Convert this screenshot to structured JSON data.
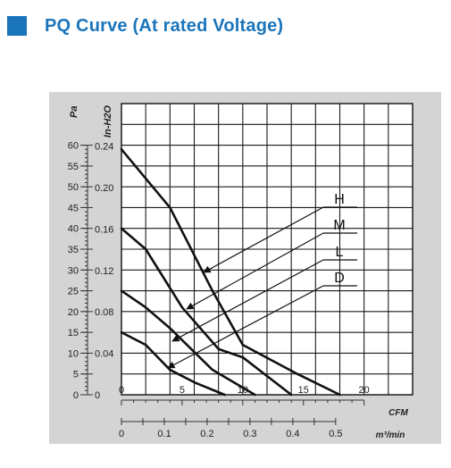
{
  "header": {
    "title": "PQ Curve (At rated Voltage)",
    "accent_color": "#1b75bb"
  },
  "chart_data": {
    "type": "line",
    "title": "PQ Curve (At rated Voltage)",
    "x_axis": {
      "label": "CFM",
      "range": [
        0,
        24
      ],
      "ticks": [
        0,
        5,
        10,
        15,
        20
      ],
      "tick_labels": [
        "0",
        "5",
        "10",
        "15",
        "20"
      ]
    },
    "x_axis_secondary": {
      "label": "m³/min",
      "ticks": [
        0,
        0.1,
        0.2,
        0.3,
        0.4,
        0.5
      ],
      "tick_labels": [
        "0",
        "0.1",
        "0.2",
        "0.3",
        "0.4",
        "0.5"
      ]
    },
    "y_axis": {
      "label": "Pa",
      "range": [
        0,
        70
      ],
      "ticks": [
        0,
        5,
        10,
        15,
        20,
        25,
        30,
        35,
        40,
        45,
        50,
        55,
        60
      ],
      "tick_labels": [
        "0",
        "5",
        "10",
        "15",
        "20",
        "25",
        "30",
        "35",
        "40",
        "45",
        "50",
        "55",
        "60"
      ]
    },
    "y_axis_secondary": {
      "label": "In-H2O",
      "ticks": [
        0,
        0.04,
        0.08,
        0.12,
        0.16,
        0.2,
        0.24
      ],
      "tick_labels": [
        "0",
        "0.04",
        "0.08",
        "0.12",
        "0.16",
        "0.20",
        "0.24"
      ]
    },
    "grid": true,
    "series": [
      {
        "name": "H",
        "x": [
          0,
          4,
          7.5,
          10,
          14.5,
          18
        ],
        "y": [
          59,
          45,
          25,
          12,
          5,
          0
        ]
      },
      {
        "name": "M",
        "x": [
          0,
          2,
          5,
          8,
          10,
          14
        ],
        "y": [
          40,
          35,
          21,
          11,
          9,
          0
        ]
      },
      {
        "name": "L",
        "x": [
          0,
          2,
          4,
          7.5,
          11
        ],
        "y": [
          25,
          21,
          16,
          6,
          0
        ]
      },
      {
        "name": "D",
        "x": [
          0,
          2,
          4,
          6,
          8.5
        ],
        "y": [
          15,
          12,
          6,
          3,
          0
        ]
      }
    ],
    "legend": "labels H, M, L, D with leader arrows on right side"
  }
}
